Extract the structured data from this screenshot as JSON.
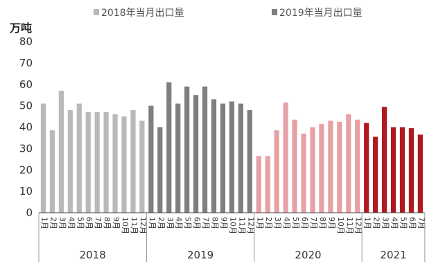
{
  "chart_data": {
    "type": "bar",
    "ylabel": "万吨",
    "ylim": [
      0,
      80
    ],
    "yticks": [
      0,
      10,
      20,
      30,
      40,
      50,
      60,
      70,
      80
    ],
    "grid": false,
    "legend_position": "top",
    "groups": [
      "2018",
      "2019",
      "2020",
      "2021"
    ],
    "series": [
      {
        "name": "2018年当月出口量",
        "group": "2018",
        "in_legend": true,
        "color": "#b9b9b9",
        "categories": [
          "1月",
          "2月",
          "3月",
          "4月",
          "5月",
          "6月",
          "7月",
          "8月",
          "9月",
          "10月",
          "11月",
          "12月"
        ],
        "values": [
          51,
          38.5,
          57,
          48,
          51,
          47,
          47,
          47,
          46,
          45,
          48,
          43
        ]
      },
      {
        "name": "2019年当月出口量",
        "group": "2019",
        "in_legend": true,
        "color": "#7f7f7f",
        "categories": [
          "1月",
          "2月",
          "3月",
          "4月",
          "5月",
          "6月",
          "7月",
          "8月",
          "9月",
          "10月",
          "11月",
          "12月"
        ],
        "values": [
          50,
          40,
          61,
          51,
          59,
          55,
          59,
          53,
          51,
          52,
          51,
          48
        ]
      },
      {
        "group": "2020",
        "in_legend": false,
        "color": "#e7a1a5",
        "categories": [
          "1月",
          "2月",
          "3月",
          "4月",
          "5月",
          "6月",
          "7月",
          "8月",
          "9月",
          "10月",
          "11月",
          "12月"
        ],
        "values": [
          26.5,
          26.5,
          38.5,
          51.5,
          43.5,
          37,
          40,
          41.5,
          43,
          42.5,
          46,
          43.5
        ]
      },
      {
        "group": "2021",
        "in_legend": false,
        "color": "#b01a1f",
        "categories": [
          "1月",
          "2月",
          "3月",
          "4月",
          "5月",
          "6月",
          "7月"
        ],
        "values": [
          42,
          35.5,
          49.5,
          40,
          40,
          39.5,
          36.5
        ]
      }
    ]
  }
}
